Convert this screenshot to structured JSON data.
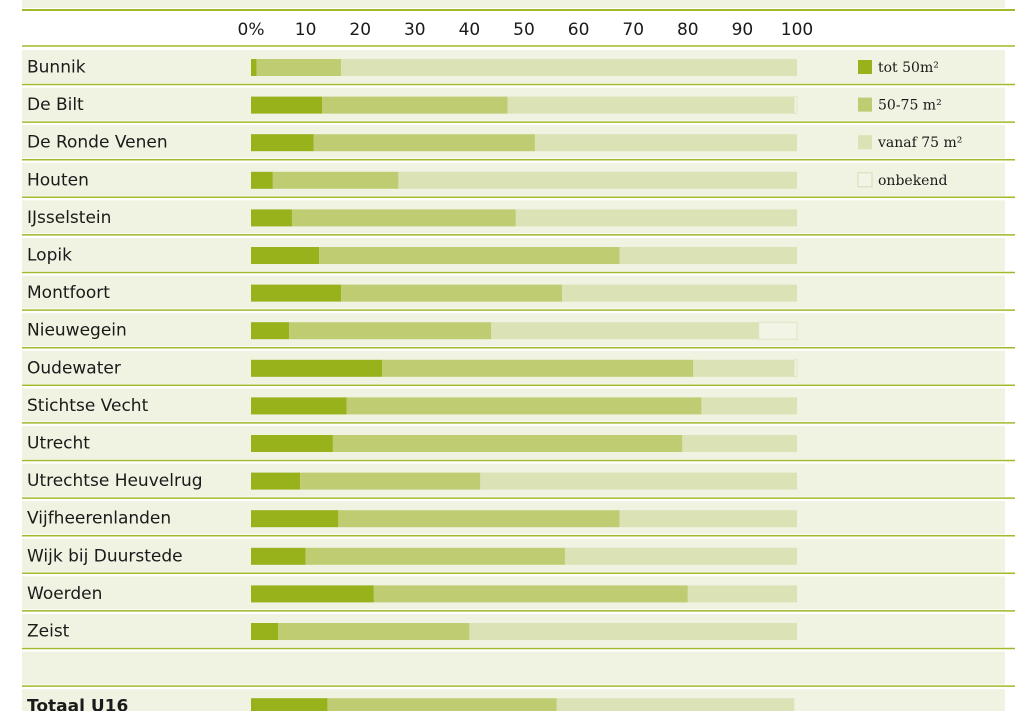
{
  "colors": {
    "tot50": "#97b21a",
    "m50_75": "#bfcc72",
    "vanaf75": "#dbe2b5",
    "onbekend": "#f2f5e6",
    "band": "#f0f2e2",
    "rule": "#a3b82a"
  },
  "chart_data": {
    "type": "bar",
    "orientation": "horizontal",
    "stacked": true,
    "xlim": [
      0,
      100
    ],
    "x_ticks": [
      "0%",
      "10",
      "20",
      "30",
      "40",
      "50",
      "60",
      "70",
      "80",
      "90",
      "100"
    ],
    "categories": [
      "Bunnik",
      "De Bilt",
      "De Ronde Venen",
      "Houten",
      "IJsselstein",
      "Lopik",
      "Montfoort",
      "Nieuwegein",
      "Oudewater",
      "Stichtse Vecht",
      "Utrecht",
      "Utrechtse Heuvelrug",
      "Vijfheerenlanden",
      "Wijk bij Duurstede",
      "Woerden",
      "Zeist"
    ],
    "series": [
      {
        "name": "tot 50m²",
        "values": [
          1,
          13,
          11.5,
          4,
          7.5,
          12.5,
          16.5,
          7,
          24,
          17.5,
          15,
          9,
          16,
          10,
          22.5,
          5
        ]
      },
      {
        "name": "50-75 m²",
        "values": [
          15.5,
          34,
          40.5,
          23,
          41,
          55,
          40.5,
          37,
          57,
          65,
          64,
          33,
          51.5,
          47.5,
          57.5,
          35
        ]
      },
      {
        "name": "vanaf 75 m²",
        "values": [
          83.5,
          52.5,
          48,
          73,
          51.5,
          32.5,
          43,
          49,
          18.5,
          17.5,
          21,
          58,
          32.5,
          42.5,
          20,
          60
        ]
      },
      {
        "name": "onbekend",
        "values": [
          0,
          0.5,
          0,
          0,
          0,
          0,
          0,
          7,
          0.5,
          0,
          0,
          0,
          0,
          0,
          0,
          0
        ]
      }
    ],
    "total": {
      "label": "Totaal U16",
      "values": [
        14,
        42,
        43.5,
        0
      ]
    },
    "legend": [
      "tot 50m²",
      "50-75 m²",
      "vanaf 75 m²",
      "onbekend"
    ],
    "legend_position": "right"
  }
}
